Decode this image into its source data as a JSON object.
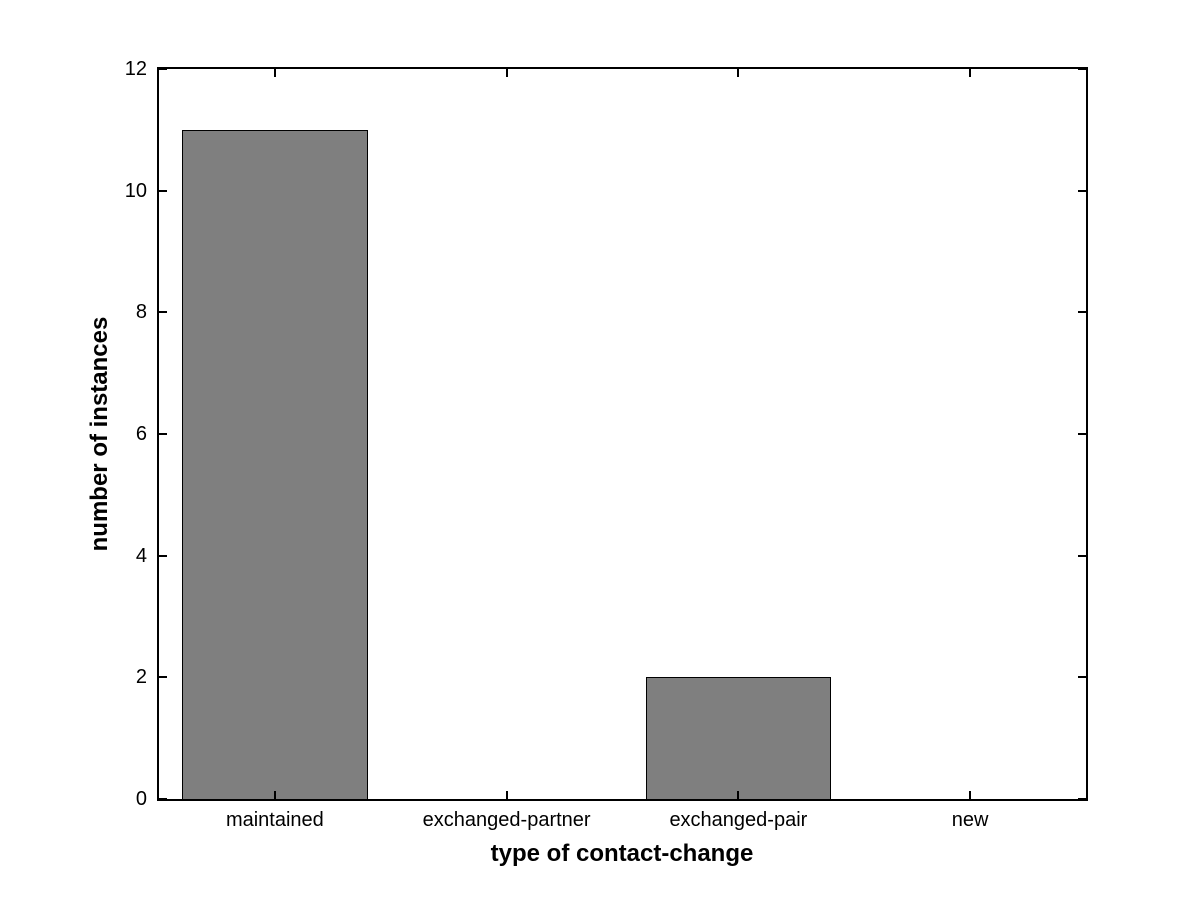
{
  "chart_data": {
    "type": "bar",
    "categories": [
      "maintained",
      "exchanged-partner",
      "exchanged-pair",
      "new"
    ],
    "values": [
      11,
      0,
      2,
      0
    ],
    "xlabel": "type of contact-change",
    "ylabel": "number of instances",
    "ylim": [
      0,
      12
    ],
    "yticks": [
      0,
      2,
      4,
      6,
      8,
      10,
      12
    ],
    "bar_color": "#7f7f7f",
    "bar_edge_color": "#000000",
    "axis_color": "#000000",
    "background_color": "#ffffff",
    "bar_width_fraction": 0.8,
    "grid": false,
    "legend": "none"
  }
}
